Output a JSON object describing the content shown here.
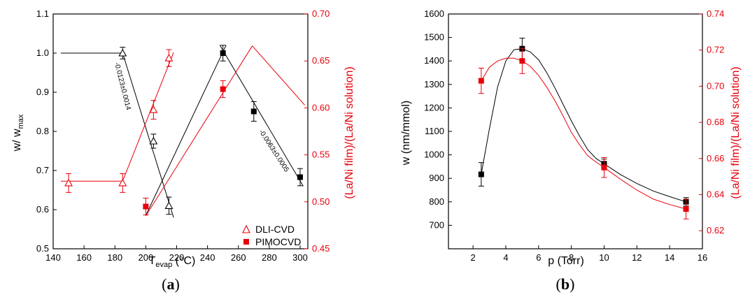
{
  "colors": {
    "black": "#000000",
    "red": "#e8000b",
    "redLight": "#f26d6d"
  },
  "panels": [
    {
      "label_open": "(",
      "label_letter": "a",
      "label_close": ")"
    },
    {
      "label_open": "(",
      "label_letter": "b",
      "label_close": ")"
    }
  ],
  "chart_data": [
    {
      "type": "scatter",
      "xlabel": {
        "main": "T",
        "sub": "evap",
        "rest": " (°C)"
      },
      "ylabel": {
        "main": "w/ w",
        "sub": "max"
      },
      "y2label": "(La/Ni film)/(La/Ni solution)",
      "xlim": [
        140,
        305
      ],
      "ylim": [
        0.5,
        1.1
      ],
      "y2lim": [
        0.45,
        0.7
      ],
      "xticks": [
        140,
        160,
        180,
        200,
        220,
        240,
        260,
        280,
        300
      ],
      "yticks": [
        "0.5",
        "0.6",
        "0.7",
        "0.8",
        "0.9",
        "1.0",
        "1.1"
      ],
      "y2ticks": [
        "0.45",
        "0.50",
        "0.55",
        "0.60",
        "0.65",
        "0.70"
      ],
      "legend": [
        {
          "name": "DLI-CVD",
          "marker": "open-triangle"
        },
        {
          "name": "PIMOCVD",
          "marker": "filled-square"
        }
      ],
      "annotations": [
        "-0.0123±0.0014",
        "-0.0063±0.0005"
      ],
      "series": [
        {
          "legend": "DLI-CVD",
          "axis": "left",
          "color": "#000000",
          "marker": "open-triangle",
          "x": [
            185,
            205,
            215
          ],
          "y": [
            1.0,
            0.775,
            0.61
          ],
          "err": [
            0.015,
            0.018,
            0.022
          ]
        },
        {
          "legend": "DLI-CVD",
          "axis": "right",
          "color": "#e8000b",
          "marker": "open-triangle",
          "x": [
            150,
            185,
            205,
            215
          ],
          "y": [
            0.52,
            0.52,
            0.598,
            0.653
          ],
          "err": [
            0.01,
            0.01,
            0.01,
            0.009
          ]
        },
        {
          "legend": "PIMOCVD",
          "axis": "left",
          "color": "#000000",
          "marker": "filled-square",
          "x": [
            250,
            270,
            300
          ],
          "y": [
            1.0,
            0.851,
            0.683
          ],
          "err": [
            0.02,
            0.025,
            0.022
          ]
        },
        {
          "legend": "PIMOCVD",
          "axis": "right",
          "color": "#e8000b",
          "marker": "filled-square",
          "x": [
            200,
            250
          ],
          "y": [
            0.495,
            0.62
          ],
          "err": [
            0.009,
            0.009
          ]
        }
      ],
      "fits": [
        {
          "axis": "left",
          "color": "#000000",
          "x": [
            145,
            185
          ],
          "y": [
            1.0,
            1.0
          ]
        },
        {
          "axis": "left",
          "color": "#000000",
          "x": [
            185,
            218
          ],
          "y": [
            1.0,
            0.58
          ]
        },
        {
          "axis": "left",
          "color": "#000000",
          "x": [
            200,
            252
          ],
          "y": [
            0.585,
            1.02
          ]
        },
        {
          "axis": "left",
          "color": "#000000",
          "x": [
            248,
            302
          ],
          "y": [
            1.02,
            0.66
          ]
        },
        {
          "axis": "right",
          "color": "#e8000b",
          "x": [
            145,
            185
          ],
          "y": [
            0.522,
            0.522
          ]
        },
        {
          "axis": "right",
          "color": "#e8000b",
          "x": [
            185,
            218
          ],
          "y": [
            0.522,
            0.659
          ]
        },
        {
          "axis": "right",
          "color": "#e8000b",
          "x": [
            200,
            269
          ],
          "y": [
            0.485,
            0.666
          ]
        },
        {
          "axis": "right",
          "color": "#e8000b",
          "x": [
            269,
            303
          ],
          "y": [
            0.666,
            0.603
          ]
        }
      ]
    },
    {
      "type": "scatter",
      "xlabel": "p (Torr)",
      "ylabel": "w (nm/mmol)",
      "y2label": "(La/Ni film)/(La/Ni solution)",
      "xlim": [
        0.5,
        16
      ],
      "ylim": [
        600,
        1600
      ],
      "y2lim": [
        0.61,
        0.74
      ],
      "xticks": [
        "2",
        "4",
        "6",
        "8",
        "10",
        "12",
        "14",
        "16"
      ],
      "yticks": [
        "700",
        "800",
        "900",
        "1000",
        "1100",
        "1200",
        "1300",
        "1400",
        "1500",
        "1600"
      ],
      "y2ticks": [
        "0.62",
        "0.64",
        "0.66",
        "0.68",
        "0.70",
        "0.72",
        "0.74"
      ],
      "series": [
        {
          "axis": "left",
          "color": "#000000",
          "marker": "filled-square",
          "x": [
            2.5,
            5,
            10,
            15
          ],
          "y": [
            917,
            1452,
            962,
            800
          ],
          "err": [
            50,
            45,
            20,
            18
          ]
        },
        {
          "axis": "right",
          "color": "#e8000b",
          "marker": "filled-square",
          "x": [
            2.5,
            5,
            10,
            15
          ],
          "y": [
            0.703,
            0.714,
            0.655,
            0.632
          ],
          "err": [
            0.007,
            0.007,
            0.0055,
            0.0055
          ]
        }
      ],
      "fits": [
        {
          "axis": "left",
          "color": "#000000",
          "x": [
            2.5,
            3.0,
            3.5,
            4.0,
            4.5,
            5.0,
            5.5,
            6.0,
            6.5,
            7.0,
            7.5,
            8.0,
            8.5,
            9.0,
            9.5,
            10.0,
            11.0,
            12.0,
            13.0,
            14.0,
            15.0
          ],
          "y": [
            917,
            1110,
            1290,
            1400,
            1448,
            1452,
            1438,
            1405,
            1350,
            1285,
            1215,
            1145,
            1080,
            1022,
            985,
            962,
            916,
            878,
            846,
            822,
            800
          ]
        },
        {
          "axis": "right",
          "color": "#e8000b",
          "x": [
            2.5,
            3.0,
            3.5,
            4.0,
            4.5,
            5.0,
            5.5,
            6.0,
            6.5,
            7.0,
            7.5,
            8.0,
            8.5,
            9.0,
            9.5,
            10.0,
            11.0,
            12.0,
            13.0,
            14.0,
            15.0
          ],
          "y": [
            0.703,
            0.7105,
            0.714,
            0.7155,
            0.7155,
            0.714,
            0.711,
            0.706,
            0.6995,
            0.692,
            0.6835,
            0.6745,
            0.6675,
            0.6615,
            0.658,
            0.655,
            0.6485,
            0.6425,
            0.6375,
            0.6345,
            0.632
          ]
        }
      ]
    }
  ]
}
